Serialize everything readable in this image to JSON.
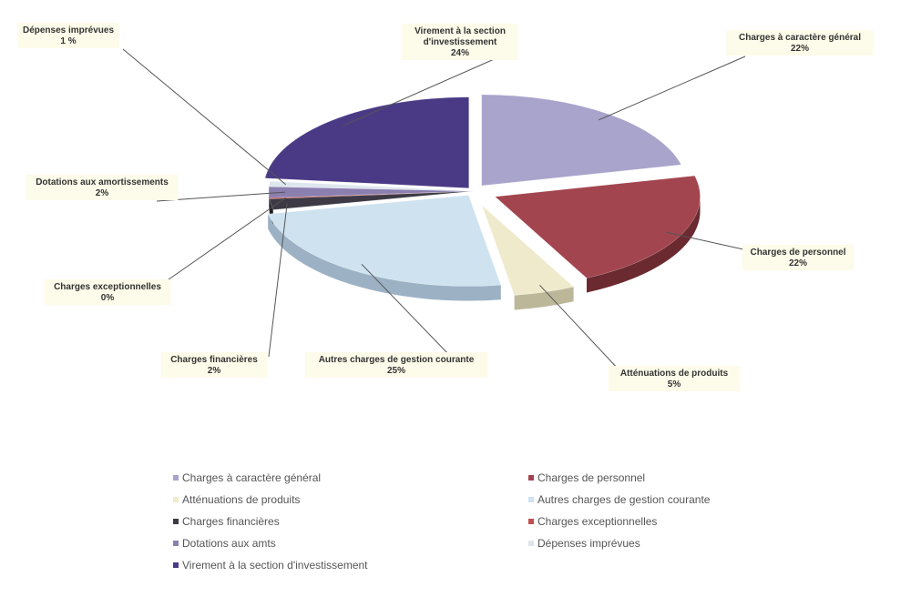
{
  "chart_data": {
    "type": "pie",
    "slices": [
      {
        "name": "Charges à caractère général",
        "label_line1": "Charges à caractère général",
        "label_line2": "22%",
        "value": 22,
        "color": "#a9a4cc",
        "side": "#7c77a3"
      },
      {
        "name": "Charges de personnel",
        "label_line1": "Charges de personnel",
        "label_line2": "22%",
        "value": 22,
        "color": "#a3454f",
        "side": "#6a2a30"
      },
      {
        "name": "Atténuations de produits",
        "label_line1": "Atténuations de produits",
        "label_line2": "5%",
        "value": 5,
        "color": "#efeacc",
        "side": "#bdb79a"
      },
      {
        "name": "Autres charges de gestion courante",
        "label_line1": "Autres charges de gestion courante",
        "label_line2": "25%",
        "value": 25,
        "color": "#cfe2f0",
        "side": "#9cb2c4"
      },
      {
        "name": "Charges financières",
        "label_line1": "Charges financières",
        "label_line2": "2%",
        "value": 2,
        "color": "#3d3a45",
        "side": "#222026"
      },
      {
        "name": "Charges exceptionnelles",
        "label_line1": "Charges exceptionnelles",
        "label_line2": "0%",
        "value": 0.2,
        "color": "#c0504d",
        "side": "#8a3533"
      },
      {
        "name": "Dotations aux amortissements",
        "label_line1": "Dotations aux amortissements",
        "label_line2": "2%",
        "value": 2,
        "color": "#8b7fb0",
        "side": "#5e5583"
      },
      {
        "name": "Dépenses imprévues",
        "label_line1": "Dépenses imprévues",
        "label_line2": "1 %",
        "value": 1,
        "color": "#dde6ee",
        "side": "#aab4bd"
      },
      {
        "name": "Virement à la section d'investissement",
        "label_line1": "Virement à la section",
        "label_line2": "d'investissement",
        "label_line3": "24%",
        "value": 24,
        "color": "#4a3a86",
        "side": "#2e2457"
      }
    ],
    "legend": [
      {
        "text": "Charges à caractère général",
        "color": "#a9a4cc"
      },
      {
        "text": "Charges de personnel",
        "color": "#a3454f"
      },
      {
        "text": "Atténuations de produits",
        "color": "#efeacc"
      },
      {
        "text": "Autres charges de gestion courante",
        "color": "#cfe2f0"
      },
      {
        "text": "Charges financières",
        "color": "#3d3a45"
      },
      {
        "text": "Charges exceptionnelles",
        "color": "#c0504d"
      },
      {
        "text": "Dotations aux amts",
        "color": "#8b7fb0"
      },
      {
        "text": "Dépenses imprévues",
        "color": "#dde6ee"
      },
      {
        "text": "Virement à la section d'investissement",
        "color": "#4a3a86"
      }
    ],
    "legend_placement": "bottom"
  }
}
